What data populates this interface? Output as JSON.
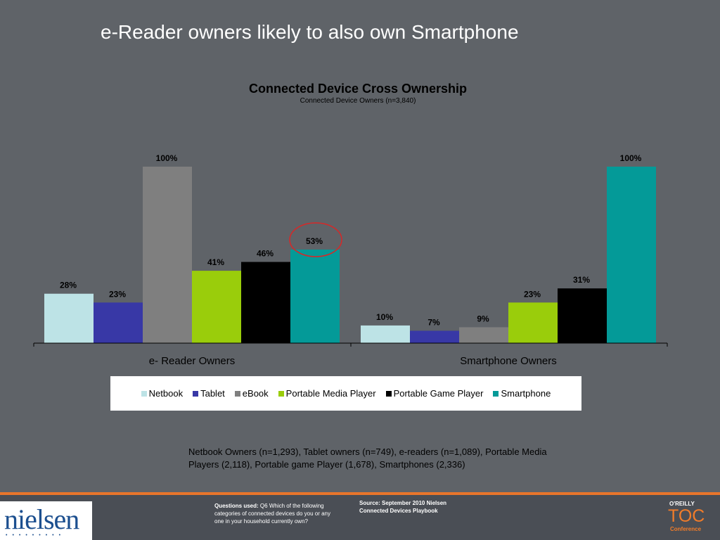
{
  "slide_title": "e-Reader owners likely to also own Smartphone",
  "note": "Netbook Owners (n=1,293), Tablet owners (n=749), e-readers (n=1,089), Portable Media Players (2,118), Portable game Player (1,678), Smartphones (2,336)",
  "footer": {
    "questions_label": "Questions used:",
    "questions_text": "Q6 Which of the following categories of connected devices do you or any one in your household currently own?",
    "source": "Source:  September 2010 Nielsen Connected Devices Playbook",
    "logo": "nielsen",
    "logo_dots": "•••••••••",
    "oreilly": "O'REILLY",
    "toc": "TOC",
    "conference": "Conference"
  },
  "chart_data": {
    "type": "bar",
    "title": "Connected Device Cross Ownership",
    "subtitle": "Connected Device Owners (n=3,840)",
    "categories": [
      "e- Reader Owners",
      "Smartphone Owners"
    ],
    "ylim": [
      0,
      100
    ],
    "grid": false,
    "legend_position": "bottom",
    "series": [
      {
        "name": "Netbook",
        "color": "#bde3e6",
        "values": [
          28,
          10
        ],
        "labels": [
          "28%",
          "10%"
        ]
      },
      {
        "name": "Tablet",
        "color": "#3838a6",
        "values": [
          23,
          7
        ],
        "labels": [
          "23%",
          "7%"
        ]
      },
      {
        "name": "eBook",
        "color": "#7f7f7f",
        "values": [
          100,
          9
        ],
        "labels": [
          "100%",
          "9%"
        ]
      },
      {
        "name": "Portable Media Player",
        "color": "#9acd0b",
        "values": [
          41,
          23
        ],
        "labels": [
          "41%",
          "23%"
        ]
      },
      {
        "name": "Portable Game Player",
        "color": "#000000",
        "values": [
          46,
          31
        ],
        "labels": [
          "46%",
          "31%"
        ]
      },
      {
        "name": "Smartphone",
        "color": "#049a98",
        "values": [
          53,
          100
        ],
        "labels": [
          "53%",
          "100%"
        ]
      }
    ],
    "annotation": {
      "type": "circle",
      "color": "#d62828",
      "series": "Smartphone",
      "category": "e- Reader Owners"
    }
  }
}
